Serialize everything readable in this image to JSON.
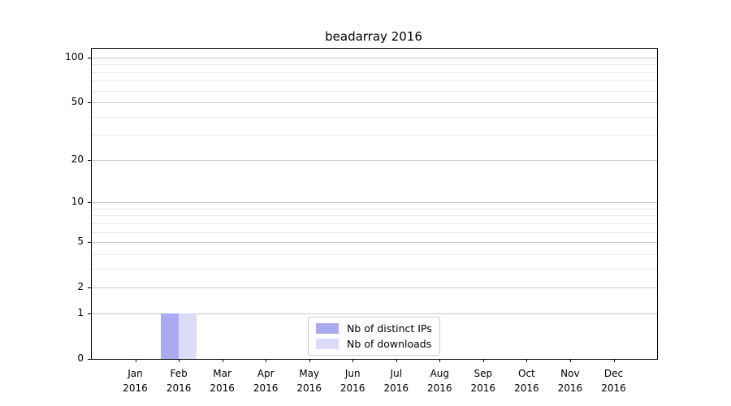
{
  "chart_data": {
    "type": "bar",
    "title": "beadarray 2016",
    "categories": [
      "Jan",
      "Feb",
      "Mar",
      "Apr",
      "May",
      "Jun",
      "Jul",
      "Aug",
      "Sep",
      "Oct",
      "Nov",
      "Dec"
    ],
    "category_sublabels": [
      "2016",
      "2016",
      "2016",
      "2016",
      "2016",
      "2016",
      "2016",
      "2016",
      "2016",
      "2016",
      "2016",
      "2016"
    ],
    "series": [
      {
        "name": "Nb of distinct IPs",
        "color": "#aaaaf0",
        "values": [
          0,
          1,
          0,
          0,
          0,
          0,
          0,
          0,
          0,
          0,
          0,
          0
        ]
      },
      {
        "name": "Nb of downloads",
        "color": "#dcdcf8",
        "values": [
          0,
          1,
          0,
          0,
          0,
          0,
          0,
          0,
          0,
          0,
          0,
          0
        ]
      }
    ],
    "yticks": [
      0,
      1,
      2,
      5,
      10,
      20,
      50,
      100
    ],
    "yticks_minor": [
      3,
      4,
      6,
      7,
      8,
      9,
      30,
      40,
      60,
      70,
      80,
      90
    ],
    "yscale": "log1p",
    "ylim": [
      0,
      115
    ],
    "xlabel": "",
    "ylabel": "",
    "grid": "horizontal-only",
    "legend_position": "lower-center-inside",
    "colors": {
      "axis": "#000000",
      "grid_major": "#c9c9c9",
      "grid_minor": "#ebebeb",
      "background": "#ffffff"
    }
  }
}
